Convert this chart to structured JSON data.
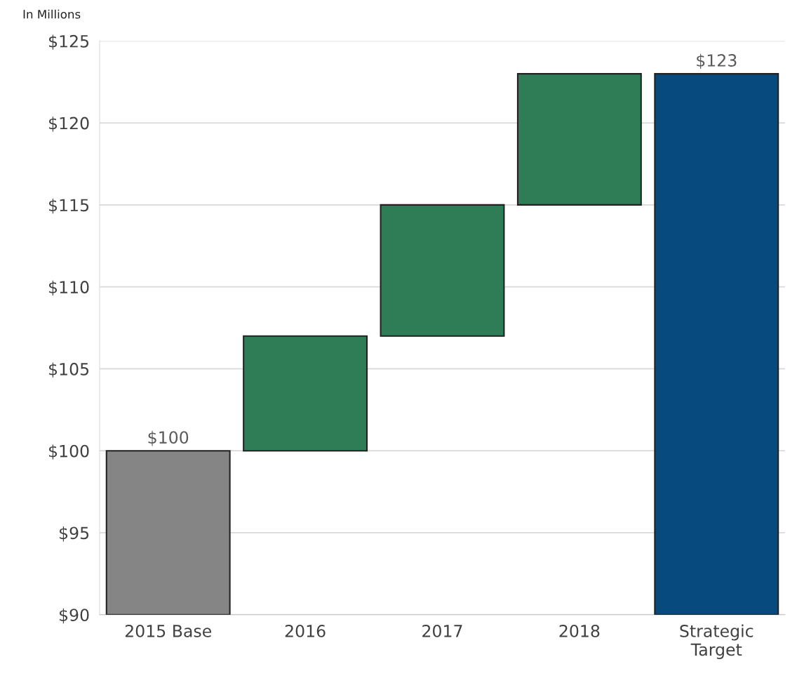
{
  "chart_data": {
    "type": "bar",
    "ylabel": "In Millions",
    "categories": [
      "2015 Base",
      "2016",
      "2017",
      "2018",
      "Strategic\nTarget"
    ],
    "values": [
      10,
      7,
      8,
      8,
      33
    ],
    "base": [
      90,
      100,
      107,
      115,
      90
    ],
    "colors": [
      "#858585",
      "#2e7d57",
      "#2e7d57",
      "#2e7d57",
      "#074a7e"
    ],
    "value_labels": [
      "$100",
      null,
      null,
      null,
      "$123"
    ],
    "ylim": [
      90,
      125
    ],
    "yticks": [
      {
        "value": 90,
        "label": "$90"
      },
      {
        "value": 95,
        "label": "$95"
      },
      {
        "value": 100,
        "label": "$100"
      },
      {
        "value": 105,
        "label": "$105"
      },
      {
        "value": 110,
        "label": "$110"
      },
      {
        "value": 115,
        "label": "$115"
      },
      {
        "value": 120,
        "label": "$120"
      },
      {
        "value": 125,
        "label": "$125"
      }
    ],
    "grid": "y",
    "legend": false
  }
}
